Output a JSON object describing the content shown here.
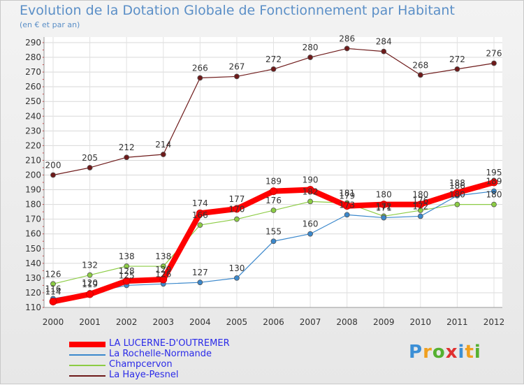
{
  "title": "Evolution de la Dotation Globale de Fonctionnement par Habitant",
  "subtitle": "(en € et par an)",
  "logo": {
    "text": "Proxiti",
    "colors": [
      "#3b8fd6",
      "#f0a020",
      "#55b030",
      "#e03030",
      "#3b8fd6",
      "#f0a020",
      "#55b030"
    ]
  },
  "chart_data": {
    "type": "line",
    "title": "Evolution de la Dotation Globale de Fonctionnement par Habitant",
    "subtitle": "(en € et par an)",
    "xlabel": "",
    "ylabel": "",
    "x": [
      "2000",
      "2001",
      "2002",
      "2003",
      "2004",
      "2005",
      "2006",
      "2007",
      "2008",
      "2009",
      "2010",
      "2011",
      "2012"
    ],
    "ylim": [
      110,
      290
    ],
    "yticks": [
      110,
      120,
      130,
      140,
      150,
      160,
      170,
      180,
      190,
      200,
      210,
      220,
      230,
      240,
      250,
      260,
      270,
      280,
      290
    ],
    "grid": true,
    "legend_position": "bottom-left",
    "series": [
      {
        "name": "La Haye-Pesnel",
        "color": "#6e1a1a",
        "values": [
          200,
          205,
          212,
          214,
          266,
          267,
          272,
          280,
          286,
          284,
          268,
          272,
          276
        ]
      },
      {
        "name": "Champcervon",
        "color": "#8ccc44",
        "values": [
          126,
          132,
          138,
          138,
          166,
          170,
          176,
          182,
          181,
          172,
          176,
          180,
          180
        ]
      },
      {
        "name": "La Rochelle-Normande",
        "color": "#3b88cc",
        "values": [
          116,
          120,
          125,
          126,
          127,
          130,
          155,
          160,
          173,
          171,
          172,
          186,
          189
        ]
      },
      {
        "name": "LA LUCERNE-D'OUTREMER",
        "color": "#ff0000",
        "values": [
          114,
          119,
          128,
          129,
          174,
          177,
          189,
          190,
          179,
          180,
          180,
          188,
          195
        ]
      }
    ],
    "legend_order": [
      "LA LUCERNE-D'OUTREMER",
      "La Rochelle-Normande",
      "Champcervon",
      "La Haye-Pesnel"
    ]
  }
}
